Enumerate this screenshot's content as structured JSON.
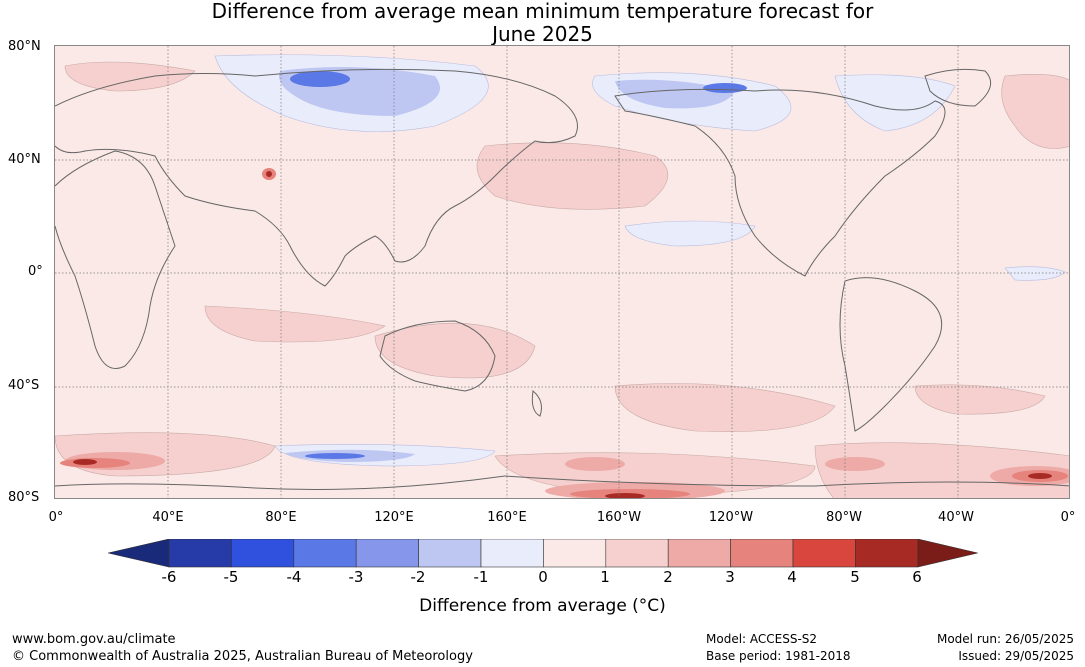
{
  "title": {
    "line1": "Difference from average mean minimum temperature forecast for",
    "line2": "June 2025"
  },
  "map": {
    "lat_labels": [
      "80°N",
      "40°N",
      "0°",
      "40°S",
      "80°S"
    ],
    "lon_labels": [
      "0°",
      "40°E",
      "80°E",
      "120°E",
      "160°E",
      "160°W",
      "120°W",
      "80°W",
      "40°W",
      "0°"
    ]
  },
  "colorbar": {
    "ticks": [
      "-6",
      "-5",
      "-4",
      "-3",
      "-2",
      "-1",
      "0",
      "1",
      "2",
      "3",
      "4",
      "5",
      "6"
    ],
    "colors": [
      "#273ba8",
      "#3050de",
      "#5a78e6",
      "#8696eb",
      "#bec6f2",
      "#e8ecfb",
      "#fbe9e7",
      "#f5d0ce",
      "#edaaa6",
      "#e6837d",
      "#d8463d",
      "#a82a25"
    ],
    "under_color": "#1a2a7a",
    "over_color": "#7a1c18",
    "label": "Difference from average (°C)"
  },
  "footer": {
    "website": "www.bom.gov.au/climate",
    "copyright": "© Commonwealth of Australia 2025, Australian Bureau of Meteorology",
    "model": "Model: ACCESS-S2",
    "base_period": "Base period: 1981-2018",
    "model_run": "Model run: 26/05/2025",
    "issued": "Issued: 29/05/2025"
  }
}
